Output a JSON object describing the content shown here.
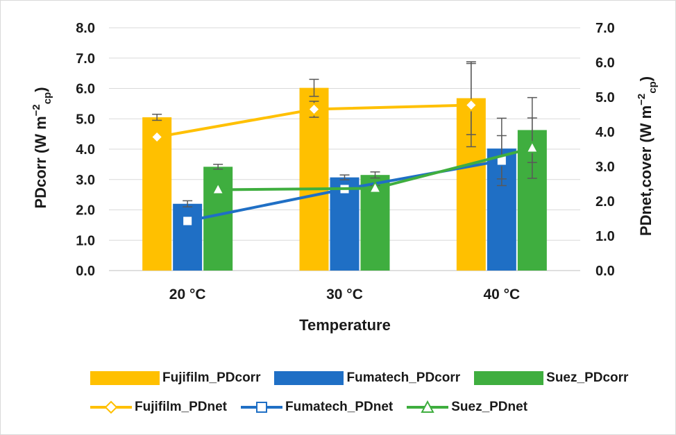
{
  "chart_data": {
    "type": "bar",
    "categories": [
      "20 °C",
      "30 °C",
      "40 °C"
    ],
    "xlabel": "Temperature",
    "ylabel": "PDcorr (W m",
    "ylabel_sup": "−2",
    "ylabel_sub": "cp",
    "ylabel_end": ")",
    "y2label": "PDnet,cover (W m",
    "y2label_sup": "−2",
    "y2label_sub": "cp",
    "y2label_end": ")",
    "ylim": [
      0,
      8
    ],
    "y2lim": [
      0,
      7
    ],
    "yticks": [
      "0.0",
      "1.0",
      "2.0",
      "3.0",
      "4.0",
      "5.0",
      "6.0",
      "7.0",
      "8.0"
    ],
    "y2ticks": [
      "0.0",
      "1.0",
      "2.0",
      "3.0",
      "4.0",
      "5.0",
      "6.0",
      "7.0"
    ],
    "grid": true,
    "legend_position": "bottom",
    "bar_series": [
      {
        "name": "Fujifilm_PDcorr",
        "color": "#FFC000",
        "values": [
          5.05,
          6.02,
          5.68
        ],
        "errors": [
          0.1,
          0.28,
          1.2
        ]
      },
      {
        "name": "Fumatech_PDcorr",
        "color": "#1F6FC5",
        "values": [
          2.2,
          3.07,
          4.02
        ],
        "errors": [
          0.1,
          0.08,
          1.0
        ]
      },
      {
        "name": "Suez_PDcorr",
        "color": "#3FAE3F",
        "values": [
          3.42,
          3.15,
          4.63
        ],
        "errors": [
          0.08,
          0.1,
          1.07
        ]
      }
    ],
    "line_series": [
      {
        "name": "Fujifilm_PDnet",
        "color": "#FFC000",
        "marker": "diamond",
        "values": [
          3.85,
          4.65,
          4.77
        ],
        "errors": [
          0,
          0.23,
          1.2
        ]
      },
      {
        "name": "Fumatech_PDnet",
        "color": "#1F6FC5",
        "marker": "square",
        "values": [
          1.43,
          2.35,
          3.17
        ],
        "errors": [
          0,
          0.07,
          0.72
        ]
      },
      {
        "name": "Suez_PDnet",
        "color": "#3FAE3F",
        "marker": "triangle",
        "values": [
          2.33,
          2.37,
          3.53
        ],
        "errors": [
          0,
          0.08,
          0.87
        ]
      }
    ]
  },
  "legend": {
    "row1": [
      "Fujifilm_PDcorr",
      "Fumatech_PDcorr",
      "Suez_PDcorr"
    ],
    "row2": [
      "Fujifilm_PDnet",
      "Fumatech_PDnet",
      "Suez_PDnet"
    ]
  }
}
